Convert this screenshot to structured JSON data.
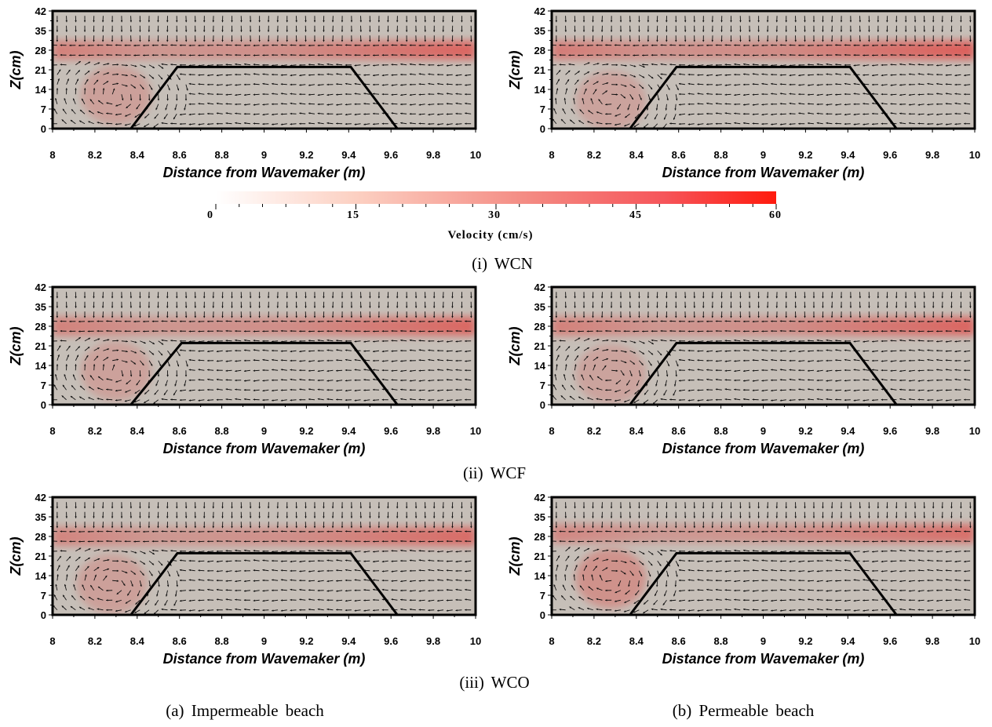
{
  "figure": {
    "colorbar": {
      "title": "Velocity (cm/s)",
      "ticks": [
        "0",
        "15",
        "30",
        "45",
        "60"
      ],
      "range": [
        0,
        60
      ],
      "color_low": "#ffffff",
      "color_high": "#ff1a0d"
    },
    "captions": {
      "row1": "(i)  WCN",
      "row2": "(ii)  WCF",
      "row3": "(iii)  WCO",
      "col_a": "(a)  Impermeable beach",
      "col_b": "(b)  Permeable beach"
    }
  },
  "chart_data": [
    {
      "type": "heatmap",
      "case": "WCN",
      "beach": "Impermeable",
      "xlabel": "Distance from Wavemaker (m)",
      "ylabel": "Z(cm)",
      "xlim": [
        8,
        10
      ],
      "ylim": [
        0,
        42
      ],
      "xticks": [
        "8",
        "8.2",
        "8.4",
        "8.6",
        "8.8",
        "9",
        "9.2",
        "9.4",
        "9.6",
        "9.8",
        "10"
      ],
      "yticks": [
        "0",
        "7",
        "14",
        "21",
        "28",
        "35",
        "42"
      ],
      "structure_outline": [
        [
          8.37,
          0
        ],
        [
          8.59,
          22
        ],
        [
          9.41,
          22
        ],
        [
          9.63,
          0
        ]
      ],
      "jet_centerline_z": 28,
      "jet_peak_velocity": 45,
      "vortex": {
        "x": 8.3,
        "z": 12,
        "velocity": 12
      }
    },
    {
      "type": "heatmap",
      "case": "WCN",
      "beach": "Permeable",
      "xlabel": "Distance from Wavemaker (m)",
      "ylabel": "Z(cm)",
      "xlim": [
        8,
        10
      ],
      "ylim": [
        0,
        42
      ],
      "xticks": [
        "8",
        "8.2",
        "8.4",
        "8.6",
        "8.8",
        "9",
        "9.2",
        "9.4",
        "9.6",
        "9.8",
        "10"
      ],
      "yticks": [
        "0",
        "7",
        "14",
        "21",
        "28",
        "35",
        "42"
      ],
      "structure_outline": [
        [
          8.37,
          0
        ],
        [
          8.59,
          22
        ],
        [
          9.41,
          22
        ],
        [
          9.63,
          0
        ]
      ],
      "jet_centerline_z": 28,
      "jet_peak_velocity": 48,
      "vortex": {
        "x": 8.28,
        "z": 10,
        "velocity": 10
      }
    },
    {
      "type": "heatmap",
      "case": "WCF",
      "beach": "Impermeable",
      "xlabel": "Distance from Wavemaker (m)",
      "ylabel": "Z(cm)",
      "xlim": [
        8,
        10
      ],
      "ylim": [
        0,
        42
      ],
      "xticks": [
        "8",
        "8.2",
        "8.4",
        "8.6",
        "8.8",
        "9",
        "9.2",
        "9.4",
        "9.6",
        "9.8",
        "10"
      ],
      "yticks": [
        "0",
        "7",
        "14",
        "21",
        "28",
        "35",
        "42"
      ],
      "structure_outline": [
        [
          8.37,
          0
        ],
        [
          8.61,
          22
        ],
        [
          9.41,
          22
        ],
        [
          9.63,
          0
        ]
      ],
      "jet_centerline_z": 28,
      "jet_peak_velocity": 44,
      "vortex": {
        "x": 8.3,
        "z": 12,
        "velocity": 11
      }
    },
    {
      "type": "heatmap",
      "case": "WCF",
      "beach": "Permeable",
      "xlabel": "Distance from Wavemaker (m)",
      "ylabel": "Z(cm)",
      "xlim": [
        8,
        10
      ],
      "ylim": [
        0,
        42
      ],
      "xticks": [
        "8",
        "8.2",
        "8.4",
        "8.6",
        "8.8",
        "9",
        "9.2",
        "9.4",
        "9.6",
        "9.8",
        "10"
      ],
      "yticks": [
        "0",
        "7",
        "14",
        "21",
        "28",
        "35",
        "42"
      ],
      "structure_outline": [
        [
          8.37,
          0
        ],
        [
          8.59,
          22
        ],
        [
          9.41,
          22
        ],
        [
          9.63,
          0
        ]
      ],
      "jet_centerline_z": 28,
      "jet_peak_velocity": 45,
      "vortex": {
        "x": 8.28,
        "z": 11,
        "velocity": 10
      }
    },
    {
      "type": "heatmap",
      "case": "WCO",
      "beach": "Impermeable",
      "xlabel": "Distance from Wavemaker (m)",
      "ylabel": "Z(cm)",
      "xlim": [
        8,
        10
      ],
      "ylim": [
        0,
        42
      ],
      "xticks": [
        "8",
        "8.2",
        "8.4",
        "8.6",
        "8.8",
        "9",
        "9.2",
        "9.4",
        "9.6",
        "9.8",
        "10"
      ],
      "yticks": [
        "0",
        "7",
        "14",
        "21",
        "28",
        "35",
        "42"
      ],
      "structure_outline": [
        [
          8.37,
          0
        ],
        [
          8.59,
          22
        ],
        [
          9.41,
          22
        ],
        [
          9.63,
          0
        ]
      ],
      "jet_centerline_z": 28,
      "jet_peak_velocity": 42,
      "vortex": {
        "x": 8.28,
        "z": 11,
        "velocity": 12
      }
    },
    {
      "type": "heatmap",
      "case": "WCO",
      "beach": "Permeable",
      "xlabel": "Distance from Wavemaker (m)",
      "ylabel": "Z(cm)",
      "xlim": [
        8,
        10
      ],
      "ylim": [
        0,
        42
      ],
      "xticks": [
        "8",
        "8.2",
        "8.4",
        "8.6",
        "8.8",
        "9",
        "9.2",
        "9.4",
        "9.6",
        "9.8",
        "10"
      ],
      "yticks": [
        "0",
        "7",
        "14",
        "21",
        "28",
        "35",
        "42"
      ],
      "structure_outline": [
        [
          8.37,
          0
        ],
        [
          8.59,
          22
        ],
        [
          9.41,
          22
        ],
        [
          9.63,
          0
        ]
      ],
      "jet_centerline_z": 29,
      "jet_peak_velocity": 40,
      "vortex": {
        "x": 8.28,
        "z": 13,
        "velocity": 22
      }
    }
  ]
}
